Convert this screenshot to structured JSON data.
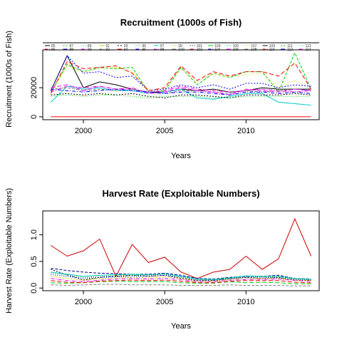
{
  "chart_data": [
    {
      "type": "line",
      "title": "Recruitment (1000s of Fish)",
      "xlabel": "Years",
      "ylabel": "Recruitment (1000s of Fish)",
      "xlim": [
        1997.5,
        2014.5
      ],
      "ylim": [
        -2000,
        46000
      ],
      "xticks": [
        2000,
        2005,
        2010
      ],
      "yticks": [
        0,
        20000
      ],
      "x": [
        1998,
        1999,
        2000,
        2001,
        2002,
        2003,
        2004,
        2005,
        2006,
        2007,
        2008,
        2009,
        2010,
        2011,
        2012,
        2013,
        2014
      ],
      "legend": {
        "placement": "top",
        "entries": [
          "85",
          "86",
          "87",
          "88",
          "89",
          "90",
          "91",
          "92",
          "93",
          "94",
          "95",
          "96",
          "97",
          "98",
          "99",
          "100",
          "101",
          "102",
          "103",
          "104",
          "105",
          "106",
          "107",
          "108",
          "109",
          "110",
          "111",
          "112",
          "113",
          "114"
        ]
      },
      "series": [
        {
          "color": "#000000",
          "values": [
            18000,
            42000,
            20000,
            24000,
            22000,
            19000,
            17000,
            17000,
            19000,
            18000,
            19000,
            17000,
            18000,
            20000,
            19000,
            19000,
            19000
          ]
        },
        {
          "color": "#00cc00",
          "values": [
            17000,
            36000,
            31000,
            34000,
            33000,
            34000,
            17000,
            18000,
            34000,
            22000,
            30000,
            27000,
            31000,
            31000,
            17000,
            44000,
            19000
          ]
        },
        {
          "color": "#0000ff",
          "values": [
            18000,
            42000,
            30000,
            31000,
            27000,
            28000,
            18000,
            19000,
            22000,
            20000,
            22000,
            19000,
            23000,
            23000,
            20000,
            22000,
            21000
          ]
        },
        {
          "color": "#ff0000",
          "values": [
            16000,
            38000,
            33000,
            34000,
            35000,
            30000,
            18000,
            20000,
            35000,
            25000,
            31000,
            28000,
            31000,
            31000,
            28000,
            37000,
            19000
          ]
        },
        {
          "color": "#cccc00",
          "values": [
            17000,
            35000,
            31000,
            33000,
            34000,
            31000,
            17000,
            18000,
            33000,
            24000,
            30000,
            27000,
            29000,
            30000,
            20000,
            25000,
            19000
          ]
        },
        {
          "color": "#ff00ff",
          "values": [
            17000,
            21000,
            20000,
            21000,
            19000,
            19000,
            17000,
            18000,
            21000,
            19000,
            18000,
            17000,
            18000,
            19000,
            18000,
            17000,
            18000
          ]
        },
        {
          "color": "#00cccc",
          "values": [
            10000,
            21000,
            19000,
            20000,
            18000,
            18000,
            16000,
            17000,
            19000,
            13000,
            12000,
            14000,
            16000,
            16000,
            10000,
            9000,
            8000
          ]
        },
        {
          "color": "#808080",
          "values": [
            19000,
            20000,
            18000,
            19000,
            18000,
            19000,
            17000,
            16000,
            18000,
            18000,
            17000,
            16000,
            18000,
            17000,
            18000,
            19000,
            18000
          ]
        },
        {
          "color": "#000000",
          "values": [
            15000,
            16000,
            15000,
            16000,
            15000,
            16000,
            14000,
            13000,
            15000,
            15000,
            14000,
            13000,
            15000,
            15000,
            15000,
            16000,
            15000
          ]
        },
        {
          "color": "#ff00ff",
          "values": [
            20000,
            22000,
            18000,
            21000,
            19000,
            20000,
            16000,
            17000,
            20000,
            18000,
            17000,
            15000,
            19000,
            18000,
            17000,
            19000,
            18000
          ]
        },
        {
          "color": "#00cc00",
          "values": [
            14000,
            15000,
            14000,
            15000,
            15000,
            14000,
            13000,
            14000,
            14000,
            14000,
            13000,
            13000,
            14000,
            14000,
            14000,
            14000,
            14000
          ]
        },
        {
          "color": "#0000ff",
          "values": [
            19000,
            18000,
            17000,
            18000,
            19000,
            18000,
            17000,
            16000,
            17000,
            17000,
            16000,
            15000,
            17000,
            17000,
            16000,
            17000,
            16000
          ]
        },
        {
          "color": "#ff0000",
          "values": [
            0,
            0,
            0,
            0,
            0,
            0,
            0,
            0,
            0,
            0,
            0,
            0,
            0,
            0,
            0,
            0,
            0
          ]
        }
      ]
    },
    {
      "type": "line",
      "title": "Harvest Rate (Exploitable Numbers)",
      "xlabel": "Years",
      "ylabel": "Harvest Rate (Exploitable Numbers)",
      "xlim": [
        1997.5,
        2014.5
      ],
      "ylim": [
        -0.05,
        1.45
      ],
      "xticks": [
        2000,
        2005,
        2010
      ],
      "yticks": [
        0.0,
        0.5,
        1.0
      ],
      "ytick_labels": [
        "0.0",
        "0.5",
        "1.0"
      ],
      "x": [
        1998,
        1999,
        2000,
        2001,
        2002,
        2003,
        2004,
        2005,
        2006,
        2007,
        2008,
        2009,
        2010,
        2011,
        2012,
        2013,
        2014
      ],
      "series": [
        {
          "color": "#cc0000",
          "values": [
            0.8,
            0.6,
            0.7,
            0.92,
            0.22,
            0.82,
            0.48,
            0.58,
            0.3,
            0.18,
            0.3,
            0.35,
            0.6,
            0.35,
            0.55,
            1.3,
            0.6
          ]
        },
        {
          "color": "#000080",
          "values": [
            0.37,
            0.33,
            0.3,
            0.28,
            0.27,
            0.26,
            0.26,
            0.28,
            0.24,
            0.18,
            0.17,
            0.2,
            0.22,
            0.22,
            0.24,
            0.18,
            0.17
          ]
        },
        {
          "color": "#000000",
          "values": [
            0.35,
            0.25,
            0.15,
            0.2,
            0.22,
            0.24,
            0.22,
            0.24,
            0.18,
            0.14,
            0.14,
            0.18,
            0.2,
            0.18,
            0.2,
            0.15,
            0.14
          ]
        },
        {
          "color": "#00cc00",
          "values": [
            0.1,
            0.09,
            0.1,
            0.12,
            0.13,
            0.12,
            0.12,
            0.12,
            0.1,
            0.09,
            0.09,
            0.12,
            0.1,
            0.11,
            0.1,
            0.08,
            0.08
          ]
        },
        {
          "color": "#0000ff",
          "values": [
            0.25,
            0.22,
            0.18,
            0.2,
            0.21,
            0.22,
            0.22,
            0.24,
            0.2,
            0.15,
            0.14,
            0.17,
            0.2,
            0.2,
            0.19,
            0.16,
            0.15
          ]
        },
        {
          "color": "#ff00ff",
          "values": [
            0.18,
            0.14,
            0.12,
            0.15,
            0.17,
            0.18,
            0.17,
            0.18,
            0.16,
            0.12,
            0.12,
            0.15,
            0.16,
            0.16,
            0.17,
            0.14,
            0.13
          ]
        },
        {
          "color": "#00cccc",
          "values": [
            0.3,
            0.26,
            0.22,
            0.24,
            0.25,
            0.26,
            0.25,
            0.27,
            0.22,
            0.17,
            0.16,
            0.19,
            0.23,
            0.22,
            0.22,
            0.18,
            0.16
          ]
        },
        {
          "color": "#808080",
          "values": [
            0.06,
            0.05,
            0.06,
            0.07,
            0.07,
            0.06,
            0.06,
            0.06,
            0.05,
            0.05,
            0.05,
            0.06,
            0.05,
            0.05,
            0.05,
            0.04,
            0.04
          ]
        },
        {
          "color": "#cccc00",
          "values": [
            0.22,
            0.18,
            0.15,
            0.18,
            0.19,
            0.2,
            0.19,
            0.21,
            0.18,
            0.13,
            0.13,
            0.16,
            0.18,
            0.18,
            0.18,
            0.15,
            0.14
          ]
        },
        {
          "color": "#ff0000",
          "values": [
            0.14,
            0.11,
            0.1,
            0.13,
            0.14,
            0.15,
            0.14,
            0.15,
            0.13,
            0.1,
            0.1,
            0.13,
            0.14,
            0.14,
            0.14,
            0.11,
            0.1
          ]
        },
        {
          "color": "#008000",
          "values": [
            0.28,
            0.24,
            0.2,
            0.22,
            0.23,
            0.24,
            0.24,
            0.26,
            0.21,
            0.16,
            0.15,
            0.18,
            0.21,
            0.21,
            0.21,
            0.17,
            0.15
          ]
        }
      ]
    }
  ]
}
